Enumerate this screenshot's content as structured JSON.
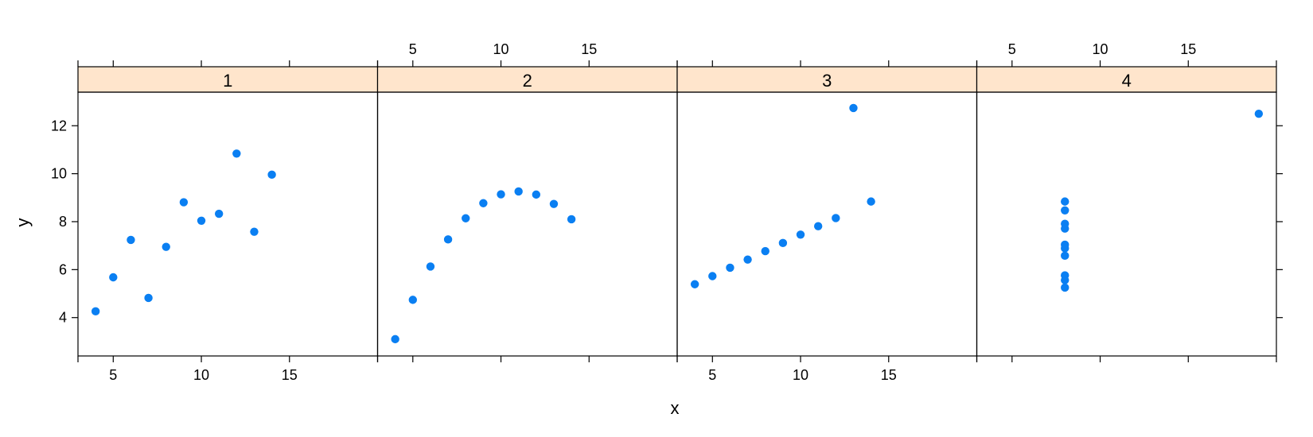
{
  "chart_data": {
    "type": "scatter",
    "xlabel": "x",
    "ylabel": "y",
    "xlim": [
      3,
      20
    ],
    "ylim": [
      2.4,
      13.4
    ],
    "x_ticks": [
      5,
      10,
      15
    ],
    "y_ticks": [
      4,
      6,
      8,
      10,
      12
    ],
    "point_color": "#0a7ff2",
    "strip_fill": "#ffe5cc",
    "panels": [
      {
        "label": "1",
        "x": [
          10,
          8,
          13,
          9,
          11,
          14,
          6,
          4,
          12,
          7,
          5
        ],
        "y": [
          8.04,
          6.95,
          7.58,
          8.81,
          8.33,
          9.96,
          7.24,
          4.26,
          10.84,
          4.82,
          5.68
        ]
      },
      {
        "label": "2",
        "x": [
          10,
          8,
          13,
          9,
          11,
          14,
          6,
          4,
          12,
          7,
          5
        ],
        "y": [
          9.14,
          8.14,
          8.74,
          8.77,
          9.26,
          8.1,
          6.13,
          3.1,
          9.13,
          7.26,
          4.74
        ]
      },
      {
        "label": "3",
        "x": [
          10,
          8,
          13,
          9,
          11,
          14,
          6,
          4,
          12,
          7,
          5
        ],
        "y": [
          7.46,
          6.77,
          12.74,
          7.11,
          7.81,
          8.84,
          6.08,
          5.39,
          8.15,
          6.42,
          5.73
        ]
      },
      {
        "label": "4",
        "x": [
          8,
          8,
          8,
          8,
          8,
          8,
          8,
          19,
          8,
          8,
          8
        ],
        "y": [
          6.58,
          5.76,
          7.71,
          8.84,
          8.47,
          7.04,
          5.25,
          12.5,
          5.56,
          7.91,
          6.89
        ]
      }
    ]
  }
}
